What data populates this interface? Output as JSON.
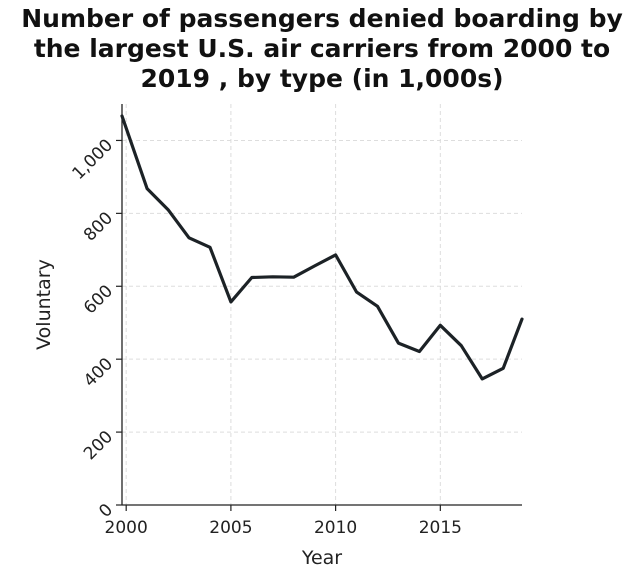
{
  "chart_data": {
    "type": "line",
    "title_lines": [
      "Number of passengers denied boarding by",
      "the largest U.S. air carriers from 2000 to",
      "2019 , by type (in 1,000s)"
    ],
    "xlabel": "Year",
    "ylabel": "Voluntary",
    "xlim": [
      1999.8,
      2018.9
    ],
    "ylim": [
      0,
      1100
    ],
    "x_ticks": [
      2000,
      2005,
      2010,
      2015
    ],
    "x_tick_labels": [
      "2000",
      "2005",
      "2010",
      "2015"
    ],
    "y_ticks": [
      0,
      200,
      400,
      600,
      800,
      1000
    ],
    "y_tick_labels": [
      "0",
      "200",
      "400",
      "600",
      "800",
      "1,000"
    ],
    "grid": true,
    "series": [
      {
        "x": [
          1999.8,
          2001,
          2002,
          2003,
          2004,
          2005,
          2006,
          2007,
          2008,
          2009,
          2010,
          2011,
          2012,
          2013,
          2014,
          2015,
          2016,
          2017,
          2018,
          2018.9
        ],
        "values": [
          1067,
          868,
          810,
          733,
          707,
          557,
          624,
          626,
          625,
          656,
          686,
          584,
          545,
          444,
          421,
          493,
          437,
          346,
          375,
          510
        ]
      }
    ],
    "line_color": "#1c2226",
    "grid_color": "#dddddd"
  }
}
